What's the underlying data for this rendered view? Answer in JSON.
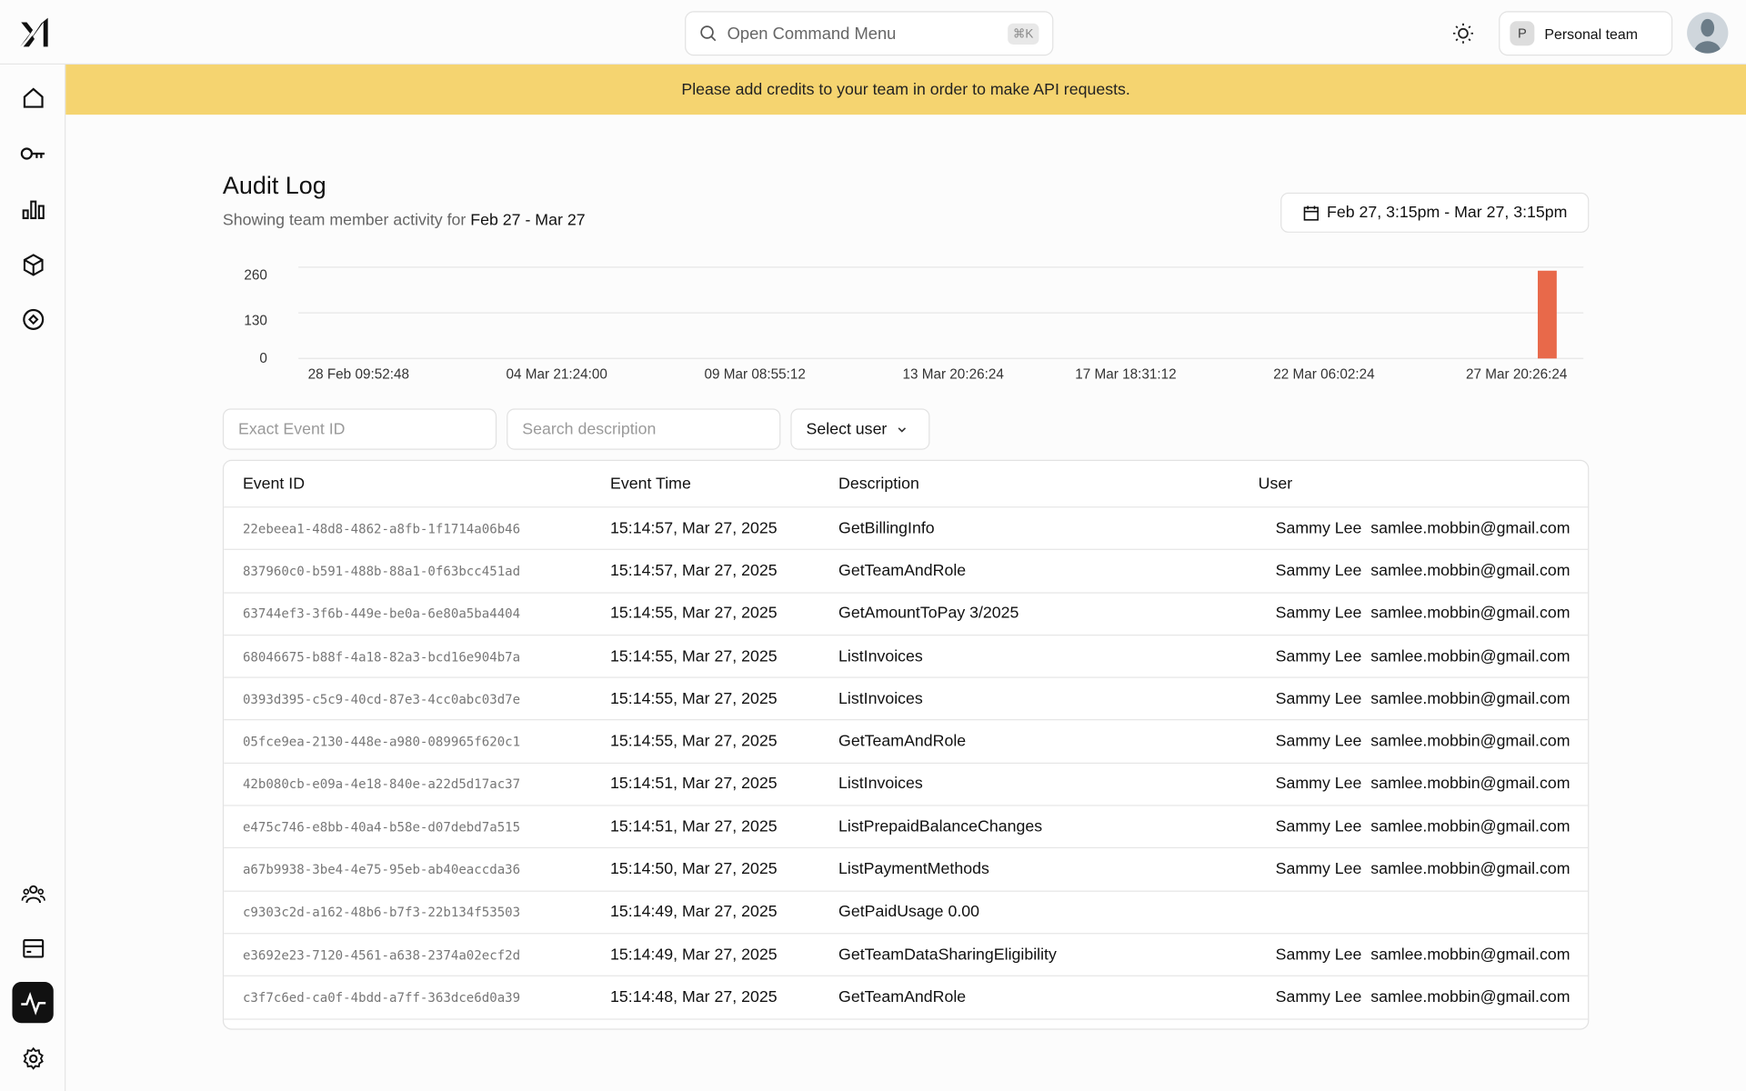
{
  "header": {
    "search_placeholder": "Open Command Menu",
    "search_shortcut": "⌘K",
    "team_initial": "P",
    "team_name": "Personal team"
  },
  "sidebar": {
    "items": [
      {
        "icon": "home-icon"
      },
      {
        "icon": "key-icon"
      },
      {
        "icon": "bar-chart-icon"
      },
      {
        "icon": "cube-icon"
      },
      {
        "icon": "target-icon"
      },
      {
        "icon": "users-icon"
      },
      {
        "icon": "billing-icon"
      },
      {
        "icon": "activity-icon",
        "active": true
      },
      {
        "icon": "gear-icon"
      }
    ]
  },
  "banner": {
    "text": "Please add credits to your team in order to make API requests.",
    "color": "#f5d470"
  },
  "page": {
    "title": "Audit Log",
    "subtitle_prefix": "Showing team member activity for",
    "subtitle_range": "Feb 27 - Mar 27",
    "date_range": "Feb 27, 3:15pm - Mar 27, 3:15pm"
  },
  "chart_data": {
    "type": "bar",
    "y_ticks": [
      0,
      130,
      260
    ],
    "ylim": [
      0,
      260
    ],
    "x_tick_labels": [
      "28 Feb 09:52:48",
      "04 Mar 21:24:00",
      "09 Mar 08:55:12",
      "13 Mar 20:26:24",
      "17 Mar 18:31:12",
      "22 Mar 06:02:24",
      "27 Mar 20:26:24"
    ],
    "bars": [
      {
        "x": "27 Mar 20:26:24",
        "value": 250
      }
    ],
    "bar_color": "#e8694a",
    "grid": true
  },
  "filters": {
    "event_id_placeholder": "Exact Event ID",
    "description_placeholder": "Search description",
    "user_select": "Select user"
  },
  "table": {
    "columns": [
      "Event ID",
      "Event Time",
      "Description",
      "User"
    ],
    "rows": [
      {
        "id": "22ebeea1-48d8-4862-a8fb-1f1714a06b46",
        "time": "15:14:57, Mar 27, 2025",
        "desc": "GetBillingInfo",
        "name": "Sammy Lee",
        "email": "samlee.mobbin@gmail.com"
      },
      {
        "id": "837960c0-b591-488b-88a1-0f63bcc451ad",
        "time": "15:14:57, Mar 27, 2025",
        "desc": "GetTeamAndRole",
        "name": "Sammy Lee",
        "email": "samlee.mobbin@gmail.com"
      },
      {
        "id": "63744ef3-3f6b-449e-be0a-6e80a5ba4404",
        "time": "15:14:55, Mar 27, 2025",
        "desc": "GetAmountToPay 3/2025",
        "name": "Sammy Lee",
        "email": "samlee.mobbin@gmail.com"
      },
      {
        "id": "68046675-b88f-4a18-82a3-bcd16e904b7a",
        "time": "15:14:55, Mar 27, 2025",
        "desc": "ListInvoices",
        "name": "Sammy Lee",
        "email": "samlee.mobbin@gmail.com"
      },
      {
        "id": "0393d395-c5c9-40cd-87e3-4cc0abc03d7e",
        "time": "15:14:55, Mar 27, 2025",
        "desc": "ListInvoices",
        "name": "Sammy Lee",
        "email": "samlee.mobbin@gmail.com"
      },
      {
        "id": "05fce9ea-2130-448e-a980-089965f620c1",
        "time": "15:14:55, Mar 27, 2025",
        "desc": "GetTeamAndRole",
        "name": "Sammy Lee",
        "email": "samlee.mobbin@gmail.com"
      },
      {
        "id": "42b080cb-e09a-4e18-840e-a22d5d17ac37",
        "time": "15:14:51, Mar 27, 2025",
        "desc": "ListInvoices",
        "name": "Sammy Lee",
        "email": "samlee.mobbin@gmail.com"
      },
      {
        "id": "e475c746-e8bb-40a4-b58e-d07debd7a515",
        "time": "15:14:51, Mar 27, 2025",
        "desc": "ListPrepaidBalanceChanges",
        "name": "Sammy Lee",
        "email": "samlee.mobbin@gmail.com"
      },
      {
        "id": "a67b9938-3be4-4e75-95eb-ab40eaccda36",
        "time": "15:14:50, Mar 27, 2025",
        "desc": "ListPaymentMethods",
        "name": "Sammy Lee",
        "email": "samlee.mobbin@gmail.com"
      },
      {
        "id": "c9303c2d-a162-48b6-b7f3-22b134f53503",
        "time": "15:14:49, Mar 27, 2025",
        "desc": "GetPaidUsage 0.00",
        "name": "",
        "email": ""
      },
      {
        "id": "e3692e23-7120-4561-a638-2374a02ecf2d",
        "time": "15:14:49, Mar 27, 2025",
        "desc": "GetTeamDataSharingEligibility",
        "name": "Sammy Lee",
        "email": "samlee.mobbin@gmail.com"
      },
      {
        "id": "c3f7c6ed-ca0f-4bdd-a7ff-363dce6d0a39",
        "time": "15:14:48, Mar 27, 2025",
        "desc": "GetTeamAndRole",
        "name": "Sammy Lee",
        "email": "samlee.mobbin@gmail.com"
      }
    ]
  }
}
